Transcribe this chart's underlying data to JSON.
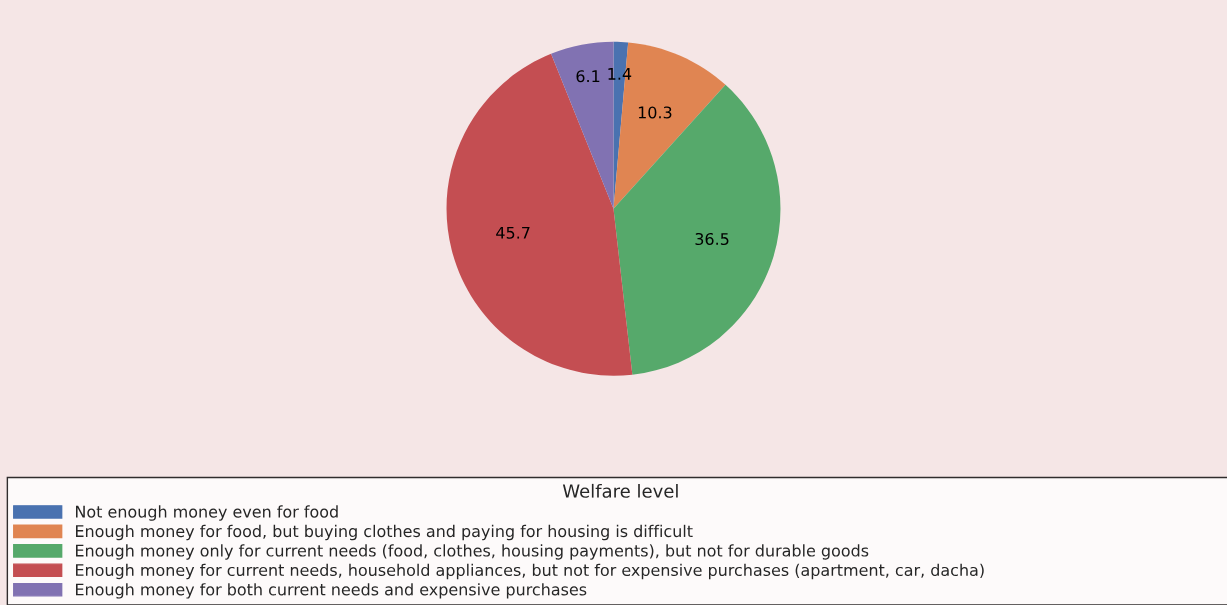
{
  "chart_data": {
    "type": "pie",
    "legend_title": "Welfare level",
    "categories": [
      "Not enough money even for food",
      "Enough money for food, but buying clothes and paying for housing is difficult",
      "Enough money only for current needs (food, clothes, housing payments), but not for durable goods",
      "Enough money for current needs, household appliances, but not for expensive purchases (apartment, car, dacha)",
      "Enough money for both current needs and expensive purchases"
    ],
    "values": [
      1.4,
      10.3,
      36.5,
      45.7,
      6.1
    ],
    "colors": [
      "#4a72b0",
      "#e08552",
      "#56a96b",
      "#c44e52",
      "#8172b2"
    ],
    "data_labels": true,
    "legend": "bottom"
  }
}
